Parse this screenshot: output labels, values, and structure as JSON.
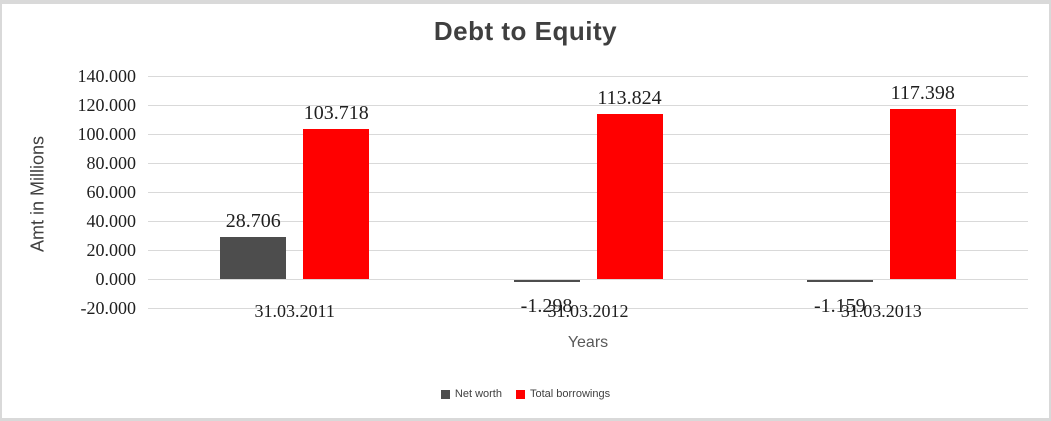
{
  "chart_data": {
    "type": "bar",
    "title": "Debt to Equity",
    "xlabel": "Years",
    "ylabel": "Amt in Millions",
    "categories": [
      "31.03.2011",
      "31.03.2012",
      "31.03.2013"
    ],
    "series": [
      {
        "name": "Net worth",
        "color": "#4d4d4d",
        "values": [
          28.706,
          -1.298,
          -1.159
        ],
        "labels": [
          "28.706",
          "-1.298",
          "-1.159"
        ]
      },
      {
        "name": "Total borrowings",
        "color": "#ff0000",
        "values": [
          103.718,
          113.824,
          117.398
        ],
        "labels": [
          "103.718",
          "113.824",
          "117.398"
        ]
      }
    ],
    "ylim": [
      -20,
      140
    ],
    "ytick_step": 20,
    "yticks": [
      {
        "value": 140,
        "label": "140.000"
      },
      {
        "value": 120,
        "label": "120.000"
      },
      {
        "value": 100,
        "label": "100.000"
      },
      {
        "value": 80,
        "label": "80.000"
      },
      {
        "value": 60,
        "label": "60.000"
      },
      {
        "value": 40,
        "label": "40.000"
      },
      {
        "value": 20,
        "label": "20.000"
      },
      {
        "value": 0,
        "label": "0.000"
      },
      {
        "value": -20,
        "label": "-20.000"
      }
    ],
    "grid": true,
    "legend_position": "bottom"
  },
  "colors": {
    "net_worth": "#4d4d4d",
    "total_borrowings": "#ff0000",
    "gridline": "#d9d9d9",
    "border": "#d9d9d9",
    "tick_text": "#1f1f1f",
    "title_text": "#3f3f3f",
    "axis_title_text": "#595959"
  }
}
